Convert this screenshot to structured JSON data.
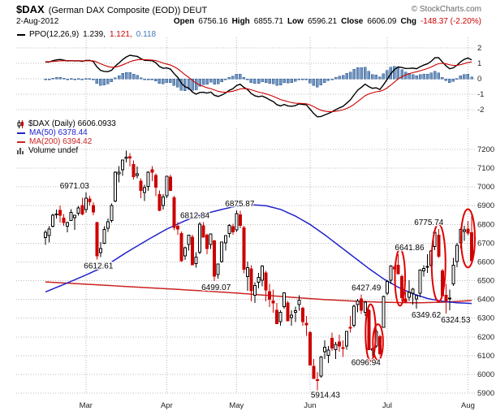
{
  "header": {
    "symbol": "$DAX",
    "title_rest": "(German DAX Composite (EOD)) DEUT",
    "copyright": "© StockCharts.com",
    "date": "2-Aug-2012",
    "quote": [
      {
        "label": "Open",
        "value": "6756.16"
      },
      {
        "label": "High",
        "value": "6855.71"
      },
      {
        "label": "Low",
        "value": "6596.21"
      },
      {
        "label": "Close",
        "value": "6606.09"
      },
      {
        "label": "Chg",
        "value": "-148.37 (-2.20%)",
        "negative": true
      }
    ]
  },
  "ppo_legend": {
    "label": "PPO(12,26,9)",
    "values": [
      "1.239,",
      "1.121,",
      "0.118"
    ]
  },
  "main_legend": {
    "rows": [
      {
        "text": "$DAX (Daily) 6606.0933"
      },
      {
        "text": "MA(50) 6378.44"
      },
      {
        "text": "MA(200) 6394.42"
      },
      {
        "text": "Volume undef"
      }
    ]
  },
  "colors": {
    "up": "#000000",
    "down": "#cc0000",
    "ppo": "#000000",
    "signal": "#cc0000",
    "histogram": "#6e94c0",
    "histogram_edge": "#2f5a8f",
    "histogram_text": "#4477bb",
    "annotation": "#e00000",
    "grid": "#bbbbbb",
    "axis_text": "#222222",
    "copyright": "#666666",
    "chg_negative": "#cc0000"
  },
  "chart_data": {
    "type": "candlestick",
    "symbol": "$DAX",
    "timeframe": "Daily",
    "last": 6606.0933,
    "ylim": [
      5900,
      7200
    ],
    "y_ticks": [
      7200,
      7100,
      7000,
      6900,
      6800,
      6700,
      6600,
      6500,
      6400,
      6300,
      6200,
      6100,
      6000,
      5900
    ],
    "x_ticks": [
      {
        "label": "Mar",
        "i": 11
      },
      {
        "label": "Apr",
        "i": 33
      },
      {
        "label": "May",
        "i": 52
      },
      {
        "label": "Jun",
        "i": 72
      },
      {
        "label": "Jul",
        "i": 93
      },
      {
        "label": "Aug",
        "i": 115
      }
    ],
    "overlays": {
      "ma50": {
        "period": 50,
        "last": 6378.44,
        "color": "#2222cc",
        "anchors": [
          [
            0,
            6440
          ],
          [
            5,
            6480
          ],
          [
            11,
            6530
          ],
          [
            16,
            6575
          ],
          [
            22,
            6650
          ],
          [
            28,
            6720
          ],
          [
            33,
            6775
          ],
          [
            38,
            6820
          ],
          [
            43,
            6855
          ],
          [
            48,
            6880
          ],
          [
            52,
            6898
          ],
          [
            56,
            6905
          ],
          [
            60,
            6900
          ],
          [
            64,
            6880
          ],
          [
            68,
            6845
          ],
          [
            72,
            6800
          ],
          [
            76,
            6745
          ],
          [
            80,
            6685
          ],
          [
            84,
            6625
          ],
          [
            88,
            6565
          ],
          [
            92,
            6510
          ],
          [
            96,
            6465
          ],
          [
            100,
            6430
          ],
          [
            104,
            6405
          ],
          [
            108,
            6390
          ],
          [
            112,
            6382
          ],
          [
            116,
            6378.44
          ]
        ]
      },
      "ma200": {
        "period": 200,
        "last": 6394.42,
        "color": "#cc2222",
        "anchors": [
          [
            0,
            6493
          ],
          [
            11,
            6481
          ],
          [
            22,
            6469
          ],
          [
            33,
            6457
          ],
          [
            44,
            6444
          ],
          [
            52,
            6434
          ],
          [
            60,
            6422
          ],
          [
            68,
            6410
          ],
          [
            76,
            6399
          ],
          [
            84,
            6391
          ],
          [
            90,
            6386
          ],
          [
            96,
            6383
          ],
          [
            102,
            6382
          ],
          [
            108,
            6385
          ],
          [
            112,
            6389
          ],
          [
            116,
            6394.42
          ]
        ]
      }
    },
    "indicator": {
      "name": "PPO",
      "params": "12,26,9",
      "ppo": 1.239,
      "signal": 1.121,
      "histogram": 0.118,
      "y_ticks": [
        2,
        1,
        0,
        -1,
        -2
      ],
      "warmup_closes_est": [
        6280,
        6300,
        6290,
        6320,
        6340,
        6330,
        6360,
        6380,
        6370,
        6400,
        6420,
        6410,
        6440,
        6460,
        6450,
        6480,
        6500,
        6490,
        6520,
        6540,
        6530,
        6560,
        6580,
        6570,
        6600,
        6620,
        6610,
        6640,
        6655,
        6645,
        6670,
        6685,
        6675,
        6700,
        6710,
        6700,
        6720,
        6730,
        6722,
        6740
      ]
    },
    "annotations": [
      {
        "text": "6971.03",
        "i": 11,
        "pos": "above",
        "dx": -14
      },
      {
        "text": "6612.61",
        "i": 14,
        "pos": "below",
        "dx": 2
      },
      {
        "text": "6812.84",
        "i": 42,
        "pos": "above",
        "dx": -6
      },
      {
        "text": "6499.07",
        "i": 46,
        "pos": "below",
        "dx": 2
      },
      {
        "text": "6875.87",
        "i": 52,
        "pos": "above",
        "dx": 4
      },
      {
        "text": "5914.43",
        "i": 74,
        "pos": "below",
        "dx": 10,
        "dy": 9
      },
      {
        "text": "6427.49",
        "i": 86,
        "pos": "above",
        "dx": 6
      },
      {
        "text": "6096.94",
        "i": 89,
        "pos": "below",
        "dx": -8
      },
      {
        "text": "6641.86",
        "i": 96,
        "pos": "above",
        "dx": 14
      },
      {
        "text": "6349.62",
        "i": 101,
        "pos": "below",
        "dx": 12
      },
      {
        "text": "6775.74",
        "i": 107,
        "pos": "above",
        "dx": -12
      },
      {
        "text": "6324.53",
        "i": 109,
        "pos": "below",
        "dx": 12
      }
    ],
    "ovals": [
      {
        "from": 88,
        "to": 89
      },
      {
        "from": 90,
        "to": 91
      },
      {
        "from": 96,
        "to": 97
      },
      {
        "from": 106,
        "to": 108
      },
      {
        "from": 114,
        "to": 116
      }
    ],
    "candles": [
      [
        "15 Feb",
        6730,
        6768,
        6690,
        6757
      ],
      [
        "16 Feb",
        6740,
        6790,
        6704,
        6775
      ],
      [
        "17 Feb",
        6790,
        6858,
        6785,
        6848
      ],
      [
        "20 Feb",
        6855,
        6880,
        6831,
        6856
      ],
      [
        "21 Feb",
        6874,
        6902,
        6809,
        6849
      ],
      [
        "22 Feb",
        6834,
        6855,
        6792,
        6810
      ],
      [
        "23 Feb",
        6791,
        6815,
        6758,
        6809
      ],
      [
        "24 Feb",
        6820,
        6882,
        6818,
        6865
      ],
      [
        "27 Feb",
        6836,
        6852,
        6770,
        6850
      ],
      [
        "28 Feb",
        6860,
        6898,
        6846,
        6888
      ],
      [
        "29 Feb",
        6900,
        6942,
        6849,
        6856
      ],
      [
        "1 Mar",
        6880,
        6971.03,
        6862,
        6941
      ],
      [
        "2 Mar",
        6935,
        6952,
        6898,
        6921
      ],
      [
        "5 Mar",
        6902,
        6918,
        6848,
        6866
      ],
      [
        "6 Mar",
        6810,
        6815,
        6612.61,
        6633
      ],
      [
        "7 Mar",
        6650,
        6705,
        6625,
        6671
      ],
      [
        "8 Mar",
        6700,
        6790,
        6695,
        6774
      ],
      [
        "9 Mar",
        6780,
        6832,
        6760,
        6814
      ],
      [
        "12 Mar",
        6820,
        6912,
        6810,
        6901
      ],
      [
        "13 Mar",
        6925,
        7082,
        6918,
        7078
      ],
      [
        "14 Mar",
        7070,
        7112,
        7025,
        7079
      ],
      [
        "15 Mar",
        7092,
        7146,
        7060,
        7144
      ],
      [
        "16 Mar",
        7152,
        7194,
        7130,
        7158
      ],
      [
        "19 Mar",
        7160,
        7180,
        7110,
        7154
      ],
      [
        "20 Mar",
        7120,
        7141,
        7040,
        7054
      ],
      [
        "21 Mar",
        7062,
        7110,
        7046,
        7071
      ],
      [
        "22 Mar",
        7030,
        7046,
        6940,
        6981
      ],
      [
        "23 Mar",
        6970,
        7012,
        6925,
        6996
      ],
      [
        "26 Mar",
        7002,
        7082,
        6980,
        7079
      ],
      [
        "27 Mar",
        7092,
        7112,
        7030,
        7079
      ],
      [
        "28 Mar",
        7062,
        7072,
        6950,
        6998
      ],
      [
        "29 Mar",
        6960,
        6982,
        6870,
        6875
      ],
      [
        "30 Mar",
        6900,
        6962,
        6880,
        6947
      ],
      [
        "2 Apr",
        6952,
        7058,
        6940,
        7056
      ],
      [
        "3 Apr",
        7052,
        7066,
        6980,
        6982
      ],
      [
        "4 Apr",
        6942,
        6952,
        6768,
        6784
      ],
      [
        "5 Apr",
        6790,
        6812,
        6745,
        6775
      ],
      [
        "10 Apr",
        6752,
        6762,
        6599,
        6606
      ],
      [
        "11 Apr",
        6632,
        6682,
        6610,
        6675
      ],
      [
        "12 Apr",
        6692,
        6746,
        6660,
        6743
      ],
      [
        "13 Apr",
        6732,
        6746,
        6583,
        6584
      ],
      [
        "16 Apr",
        6592,
        6652,
        6570,
        6625
      ],
      [
        "17 Apr",
        6652,
        6812.84,
        6640,
        6801
      ],
      [
        "18 Apr",
        6792,
        6812,
        6732,
        6732
      ],
      [
        "19 Apr",
        6742,
        6752,
        6640,
        6671
      ],
      [
        "20 Apr",
        6692,
        6752,
        6670,
        6750
      ],
      [
        "23 Apr",
        6712,
        6716,
        6499.07,
        6523
      ],
      [
        "24 Apr",
        6532,
        6592,
        6510,
        6590
      ],
      [
        "25 Apr",
        6602,
        6706,
        6595,
        6705
      ],
      [
        "26 Apr",
        6702,
        6742,
        6660,
        6740
      ],
      [
        "27 Apr",
        6752,
        6802,
        6730,
        6795
      ],
      [
        "30 Apr",
        6788,
        6804,
        6746,
        6761
      ],
      [
        "2 May",
        6772,
        6875.87,
        6760,
        6858
      ],
      [
        "3 May",
        6852,
        6872,
        6780,
        6795
      ],
      [
        "4 May",
        6782,
        6792,
        6540,
        6561
      ],
      [
        "7 May",
        6522,
        6602,
        6445,
        6569
      ],
      [
        "8 May",
        6562,
        6582,
        6390,
        6445
      ],
      [
        "9 May",
        6422,
        6492,
        6380,
        6475
      ],
      [
        "10 May",
        6492,
        6542,
        6460,
        6518
      ],
      [
        "11 May",
        6502,
        6582,
        6470,
        6579
      ],
      [
        "14 May",
        6542,
        6552,
        6390,
        6451
      ],
      [
        "15 May",
        6442,
        6482,
        6360,
        6401
      ],
      [
        "16 May",
        6392,
        6452,
        6330,
        6381
      ],
      [
        "18 May",
        6342,
        6382,
        6270,
        6271
      ],
      [
        "21 May",
        6282,
        6342,
        6260,
        6331
      ],
      [
        "22 May",
        6362,
        6436,
        6350,
        6435
      ],
      [
        "23 May",
        6382,
        6392,
        6285,
        6286
      ],
      [
        "24 May",
        6302,
        6342,
        6260,
        6315
      ],
      [
        "25 May",
        6332,
        6362,
        6280,
        6340
      ],
      [
        "29 May",
        6372,
        6422,
        6340,
        6396
      ],
      [
        "30 May",
        6352,
        6362,
        6260,
        6281
      ],
      [
        "31 May",
        6272,
        6312,
        6206,
        6264
      ],
      [
        "1 Jun",
        6222,
        6232,
        6050,
        6050
      ],
      [
        "4 Jun",
        6042,
        6082,
        5975,
        5978
      ],
      [
        "5 Jun",
        5972,
        6012,
        5914.43,
        5969
      ],
      [
        "6 Jun",
        5992,
        6098,
        5982,
        6093
      ],
      [
        "7 Jun",
        6122,
        6182,
        6082,
        6144
      ],
      [
        "8 Jun",
        6102,
        6152,
        6060,
        6130
      ],
      [
        "11 Jun",
        6192,
        6222,
        6125,
        6141
      ],
      [
        "12 Jun",
        6132,
        6172,
        6082,
        6161
      ],
      [
        "13 Jun",
        6172,
        6212,
        6122,
        6152
      ],
      [
        "14 Jun",
        6142,
        6182,
        6092,
        6139
      ],
      [
        "15 Jun",
        6152,
        6232,
        6132,
        6229
      ],
      [
        "18 Jun",
        6252,
        6312,
        6222,
        6248
      ],
      [
        "19 Jun",
        6262,
        6372,
        6252,
        6363
      ],
      [
        "20 Jun",
        6372,
        6402,
        6332,
        6392
      ],
      [
        "21 Jun",
        6402,
        6427.49,
        6322,
        6343
      ],
      [
        "22 Jun",
        6332,
        6392,
        6312,
        6385
      ],
      [
        "25 Jun",
        6342,
        6348,
        6130,
        6132
      ],
      [
        "26 Jun",
        6130,
        6192,
        6096.94,
        6136
      ],
      [
        "27 Jun",
        6152,
        6242,
        6142,
        6229
      ],
      [
        "28 Jun",
        6202,
        6212,
        6102,
        6111
      ],
      [
        "29 Jun",
        6252,
        6420,
        6248,
        6416
      ],
      [
        "2 Jul",
        6432,
        6502,
        6422,
        6496
      ],
      [
        "3 Jul",
        6502,
        6582,
        6482,
        6578
      ],
      [
        "4 Jul",
        6572,
        6582,
        6540,
        6564
      ],
      [
        "5 Jul",
        6582,
        6641.86,
        6532,
        6536
      ],
      [
        "6 Jul",
        6522,
        6532,
        6392,
        6410
      ],
      [
        "9 Jul",
        6402,
        6442,
        6382,
        6388
      ],
      [
        "10 Jul",
        6412,
        6502,
        6392,
        6438
      ],
      [
        "11 Jul",
        6432,
        6462,
        6372,
        6454
      ],
      [
        "12 Jul",
        6402,
        6422,
        6349.62,
        6419
      ],
      [
        "13 Jul",
        6432,
        6560,
        6412,
        6557
      ],
      [
        "16 Jul",
        6552,
        6582,
        6522,
        6565
      ],
      [
        "17 Jul",
        6572,
        6642,
        6542,
        6577
      ],
      [
        "18 Jul",
        6582,
        6662,
        6572,
        6658
      ],
      [
        "19 Jul",
        6682,
        6760,
        6662,
        6758
      ],
      [
        "20 Jul",
        6742,
        6775.74,
        6622,
        6630
      ],
      [
        "23 Jul",
        6552,
        6562,
        6415,
        6419
      ],
      [
        "24 Jul",
        6422,
        6482,
        6324.53,
        6390
      ],
      [
        "25 Jul",
        6402,
        6452,
        6342,
        6406
      ],
      [
        "26 Jul",
        6482,
        6622,
        6472,
        6582
      ],
      [
        "27 Jul",
        6602,
        6702,
        6572,
        6689
      ],
      [
        "30 Jul",
        6702,
        6782,
        6672,
        6774
      ],
      [
        "31 Jul",
        6762,
        6792,
        6712,
        6772
      ],
      [
        "1 Aug",
        6775,
        6818,
        6742,
        6754
      ],
      [
        "2 Aug",
        6756.16,
        6855.71,
        6596.21,
        6606.09
      ]
    ]
  }
}
